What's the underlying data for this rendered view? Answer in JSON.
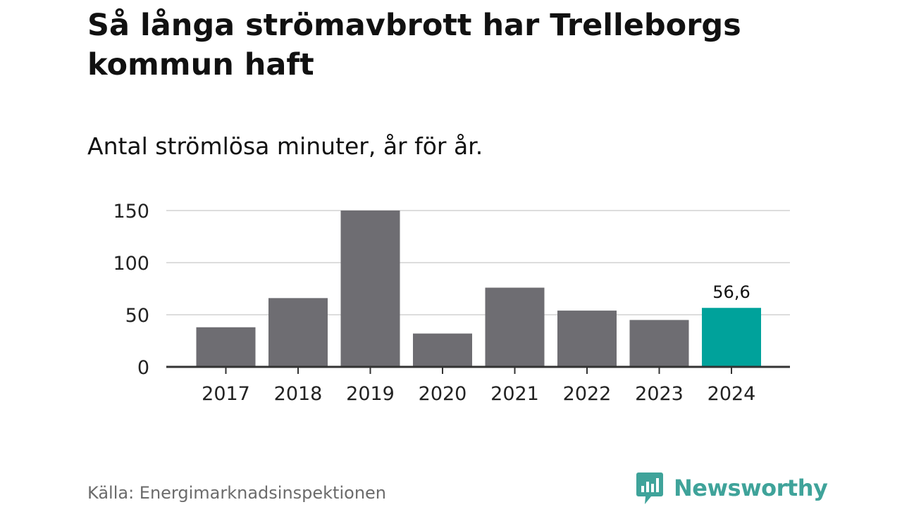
{
  "title": "Så långa strömavbrott har Trelleborgs kommun haft",
  "subtitle": "Antal strömlösa minuter, år för år.",
  "source": "Källa: Energimarknadsinspektionen",
  "brand": {
    "name": "Newsworthy",
    "icon": "newsworthy-logo-icon",
    "color": "#3fa39a"
  },
  "colors": {
    "bar": "#6e6d72",
    "highlight": "#00a29b",
    "grid": "#dddddd",
    "axis": "#333333"
  },
  "chart_data": {
    "type": "bar",
    "title": "Så långa strömavbrott har Trelleborgs kommun haft",
    "subtitle": "Antal strömlösa minuter, år för år.",
    "xlabel": "",
    "ylabel": "",
    "categories": [
      "2017",
      "2018",
      "2019",
      "2020",
      "2021",
      "2022",
      "2023",
      "2024"
    ],
    "values": [
      38,
      66,
      151,
      32,
      76,
      54,
      45,
      56.6
    ],
    "highlight_index": 7,
    "data_labels": [
      {
        "index": 7,
        "text": "56,6"
      }
    ],
    "ylim": [
      0,
      150
    ],
    "yticks": [
      0,
      50,
      100,
      150
    ],
    "grid": true
  }
}
